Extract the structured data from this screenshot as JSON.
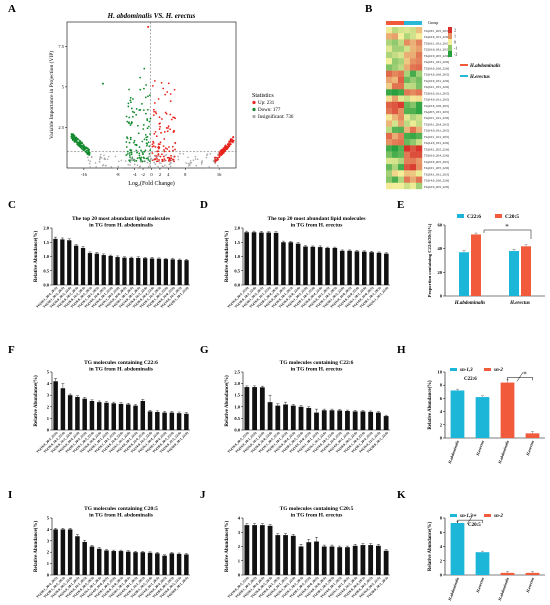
{
  "panel_letters": [
    "A",
    "B",
    "C",
    "D",
    "E",
    "F",
    "G",
    "H",
    "I",
    "J",
    "K"
  ],
  "colors": {
    "up": "#e8231d",
    "down": "#138a2e",
    "insig": "#aaaaaa",
    "sn13": "#1cb6d9",
    "sn2": "#f15a3a",
    "bar": "#111111",
    "heat_high": "#d7302a",
    "heat_low": "#27a13f",
    "heat_mid": "#f4ef9a",
    "group_a": "#f05a3a",
    "group_b": "#28b8d6"
  },
  "chart_data": [
    {
      "id": "A",
      "type": "scatter",
      "title": "H. abdominalis VS. H. erectus",
      "xlabel": "Log₂(Fold Change)",
      "ylabel": "Variable Importance in Projection (VIP)",
      "xticks": [
        "-16",
        "-8",
        "-4",
        "-2",
        "0",
        "2",
        "4",
        "8",
        "16"
      ],
      "yticks": [
        "2.5",
        "5",
        "7.5"
      ],
      "xlim": [
        -20,
        20
      ],
      "ylim": [
        0,
        9
      ],
      "legend": {
        "title": "Statistics",
        "placement": "right",
        "items": [
          "Up: 231",
          "Down: 177",
          "Insignificant: 736"
        ]
      }
    },
    {
      "id": "B",
      "type": "heatmap",
      "group_label": "Group",
      "groups": [
        "H.abdominalis",
        "H.erectus"
      ],
      "scale_ticks": [
        "2",
        "1",
        "0",
        "-1",
        "-2"
      ],
      "row_labels": [
        "TG(18:1_20:5_20:5)",
        "TG(16:0_16:1_22:6)",
        "TG(16:1_18:1_20:5)",
        "TG(16:0_18:1_20:5)",
        "TG(16:0_20:5_22:6)",
        "TG(18:1_18:1_22:6)",
        "TG(16:0_16:0_22:6)",
        "TG(14:0_16:0_20:5)",
        "TG(16:0_18:1_22:6)",
        "TG(16:1_18:1_22:6)",
        "TG(16:0_16:1_20:5)",
        "TG(14:0_16:1_20:5)",
        "TG(16:0_16:0_20:5)",
        "TG(20:5_18:1_20:5)",
        "TG(16:1_16:1_22:6)",
        "TG(18:1_20:4_20:5)",
        "TG(14:0_18:1_20:5)",
        "TG(16:1_16:1_20:5)",
        "TG(14:0_18:1_22:6)",
        "TG(18:1_20:5_22:6)",
        "TG(16:0_20:4_22:6)",
        "TG(16:0_20:5_20:5)",
        "TG(16:1_20:5_22:6)",
        "TG(18:1_18:1_20:5)",
        "TG(14:0_16:0_22:6)",
        "TG(16:0_20:5_22:6)"
      ]
    },
    {
      "id": "C",
      "type": "bar",
      "title": [
        "The top 20 most abundant lipid molecules",
        "in TG from H. abdominalis"
      ],
      "ylabel": "Relative Abundance(%)",
      "ylim": [
        0,
        2
      ],
      "yticks": [
        "0.0",
        "0.5",
        "1.0",
        "1.5",
        "2.0"
      ],
      "values": [
        1.62,
        1.6,
        1.57,
        1.38,
        1.3,
        1.12,
        1.1,
        1.05,
        1.02,
        0.98,
        0.96,
        0.95,
        0.95,
        0.94,
        0.93,
        0.92,
        0.91,
        0.9,
        0.88,
        0.87
      ],
      "errors": [
        0.06,
        0.05,
        0.05,
        0.04,
        0.05,
        0.04,
        0.04,
        0.04,
        0.03,
        0.04,
        0.03,
        0.03,
        0.04,
        0.03,
        0.04,
        0.03,
        0.03,
        0.04,
        0.03,
        0.03
      ],
      "categories": [
        "TG(18:1_20:4_20:5)",
        "TG(18:1_20:5_20:5)",
        "TG(16:0_20:5_22:6)",
        "TG(16:0_18:1_20:5)",
        "TG(16:0_16:1_20:5)",
        "TG(16:0_20:5_20:5)",
        "TG(16:1_18:1_20:5)",
        "TG(14:0_16:0_20:5)",
        "TG(16:0_18:1_22:6)",
        "TG(16:1_20:5_22:6)",
        "TG(16:0_16:0_20:5)",
        "TG(18:1_18:1_20:5)",
        "TG(14:0_18:1_20:5)",
        "TG(16:0_16:1_22:6)",
        "TG(16:0_20:4_22:6)",
        "TG(16:1_16:1_20:5)",
        "TG(18:1_20:5_22:6)",
        "TG(16:0_16:0_22:6)",
        "TG(14:0_16:1_20:5)",
        "TG(18:1_18:1_22:6)"
      ]
    },
    {
      "id": "D",
      "type": "bar",
      "title": [
        "The top 20 most abundant lipid molecules",
        "in TG from H. erectus"
      ],
      "ylabel": "Relative Abundance(%)",
      "ylim": [
        0,
        2
      ],
      "yticks": [
        "0.0",
        "0.5",
        "1.0",
        "1.5",
        "2.0"
      ],
      "values": [
        1.85,
        1.85,
        1.84,
        1.84,
        1.83,
        1.5,
        1.5,
        1.45,
        1.35,
        1.34,
        1.33,
        1.3,
        1.3,
        1.2,
        1.2,
        1.18,
        1.17,
        1.15,
        1.13,
        1.1
      ],
      "errors": [
        0.04,
        0.04,
        0.04,
        0.03,
        0.04,
        0.04,
        0.03,
        0.04,
        0.03,
        0.03,
        0.04,
        0.03,
        0.03,
        0.03,
        0.03,
        0.04,
        0.03,
        0.03,
        0.03,
        0.03
      ],
      "categories": [
        "TG(16:0_20:5_22:6)",
        "TG(16:0_18:1_22:6)",
        "TG(18:1_20:5_20:5)",
        "TG(16:0_16:1_22:6)",
        "TG(18:1_20:4_20:5)",
        "TG(16:0_20:5_20:5)",
        "TG(16:0_18:1_20:5)",
        "TG(16:0_16:0_22:6)",
        "TG(16:1_20:5_22:6)",
        "TG(18:1_18:1_22:6)",
        "TG(16:0_20:4_22:6)",
        "TG(16:0_16:1_20:5)",
        "TG(16:1_18:1_20:5)",
        "TG(18:1_20:5_22:6)",
        "TG(16:0_16:0_20:5)",
        "TG(14:0_16:0_22:6)",
        "TG(16:1_18:1_22:6)",
        "TG(14:0_16:0_20:5)",
        "TG(18:1_18:1_20:5)",
        "TG(16:1_16:1_22:6)"
      ]
    },
    {
      "id": "E",
      "type": "bar",
      "ylabel": "Proportion containing C22:6/20:5(%)",
      "ylim": [
        0,
        60
      ],
      "yticks": [
        "0",
        "20",
        "40",
        "60"
      ],
      "categories": [
        "H.abdominalis",
        "H.erectus"
      ],
      "series": [
        {
          "name": "C22:6",
          "values": [
            37,
            38
          ],
          "errors": [
            1.5,
            1.5
          ]
        },
        {
          "name": "C20:5",
          "values": [
            52,
            42
          ],
          "errors": [
            1.2,
            1.3
          ]
        }
      ],
      "annotation": "*"
    },
    {
      "id": "F",
      "type": "bar",
      "title": [
        "TG molecules containing C22:6",
        "in TG from H. abdominalis"
      ],
      "ylabel": "Relative Abundance(%)",
      "ylim": [
        0,
        5
      ],
      "yticks": [
        "0",
        "1",
        "2",
        "3",
        "4",
        "5"
      ],
      "values": [
        4.2,
        3.6,
        3.0,
        2.85,
        2.7,
        2.5,
        2.4,
        2.35,
        2.3,
        2.25,
        2.2,
        2.1,
        2.5,
        1.6,
        1.55,
        1.5,
        1.5,
        1.45,
        1.4
      ],
      "errors": [
        0.25,
        0.4,
        0.1,
        0.1,
        0.1,
        0.1,
        0.1,
        0.1,
        0.1,
        0.1,
        0.1,
        0.1,
        0.15,
        0.1,
        0.1,
        0.1,
        0.1,
        0.1,
        0.1
      ],
      "categories": [
        "TG(16:0_20:5_22:6)",
        "TG(16:0_18:1_22:6)",
        "TG(16:0_16:1_22:6)",
        "TG(16:0_20:4_22:6)",
        "TG(18:1_20:5_22:6)",
        "TG(16:1_20:5_22:6)",
        "TG(16:0_16:0_22:6)",
        "TG(18:1_18:1_22:6)",
        "TG(16:1_18:1_22:6)",
        "TG(14:0_16:0_22:6)",
        "TG(16:1_16:1_22:6)",
        "TG(14:0_18:1_22:6)",
        "TG(16:0_22:6_22:6)",
        "TG(14:0_16:1_22:6)",
        "TG(16:1_20:4_22:6)",
        "TG(18:1_20:4_22:6)",
        "TG(18:0_20:5_22:6)",
        "TG(16:0_22:5_22:6)",
        "TG(18:0_18:1_22:6)"
      ]
    },
    {
      "id": "G",
      "type": "bar",
      "title": [
        "TG molecules containing C22:6",
        "in TG from H. erectus"
      ],
      "ylabel": "Relative Abundance(%)",
      "ylim": [
        0,
        2.5
      ],
      "yticks": [
        "0.0",
        "0.5",
        "1.0",
        "1.5",
        "2.0",
        "2.5"
      ],
      "values": [
        1.85,
        1.85,
        1.84,
        1.2,
        1.05,
        1.1,
        1.05,
        1.0,
        0.95,
        0.75,
        0.85,
        0.85,
        0.84,
        0.82,
        0.8,
        0.8,
        0.78,
        0.75,
        0.6
      ],
      "errors": [
        0.05,
        0.05,
        0.05,
        0.3,
        0.08,
        0.1,
        0.05,
        0.05,
        0.05,
        0.15,
        0.05,
        0.05,
        0.04,
        0.04,
        0.05,
        0.04,
        0.04,
        0.04,
        0.04
      ],
      "categories": [
        "TG(16:0_20:5_22:6)",
        "TG(16:0_18:1_22:6)",
        "TG(16:0_16:1_22:6)",
        "TG(16:0_16:0_22:6)",
        "TG(16:1_20:5_22:6)",
        "TG(18:1_18:1_22:6)",
        "TG(16:0_20:4_22:6)",
        "TG(18:1_20:5_22:6)",
        "TG(14:0_16:0_22:6)",
        "TG(16:1_18:1_22:6)",
        "TG(16:1_16:1_22:6)",
        "TG(14:0_18:1_22:6)",
        "TG(16:0_22:6_22:6)",
        "TG(14:0_16:1_22:6)",
        "TG(18:0_20:5_22:6)",
        "TG(16:1_20:4_22:6)",
        "TG(18:1_20:4_22:6)",
        "TG(16:0_22:5_22:6)",
        "TG(18:0_18:1_22:6)"
      ]
    },
    {
      "id": "H",
      "type": "bar",
      "label": "C22:6",
      "ylabel": "Relative Abundance(%)",
      "ylim": [
        0,
        10
      ],
      "yticks": [
        "0",
        "2",
        "4",
        "6",
        "8",
        "10"
      ],
      "categories": [
        "H.abdominalis",
        "H.erectus",
        "H.abdominalis",
        "H.erectus"
      ],
      "series": [
        {
          "name": "sn-1,3",
          "values": [
            7.2,
            6.2,
            null,
            null
          ],
          "errors": [
            0.2,
            0.2,
            0,
            0
          ]
        },
        {
          "name": "sn-2",
          "values": [
            null,
            null,
            8.4,
            0.7
          ],
          "errors": [
            0,
            0,
            0.4,
            0.3
          ]
        }
      ],
      "annotation": "*"
    },
    {
      "id": "I",
      "type": "bar",
      "title": [
        "TG molecules containing C20:5",
        "in TG from H. abdominalis"
      ],
      "ylabel": "Relative Abundance(%)",
      "ylim": [
        0,
        5
      ],
      "yticks": [
        "0",
        "1",
        "2",
        "3",
        "4",
        "5"
      ],
      "values": [
        4.0,
        4.0,
        4.0,
        3.4,
        2.9,
        2.5,
        2.3,
        2.15,
        2.1,
        2.1,
        2.05,
        2.0,
        2.0,
        1.95,
        1.9,
        1.7,
        1.9,
        1.85,
        1.8
      ],
      "errors": [
        0.1,
        0.1,
        0.1,
        0.15,
        0.15,
        0.1,
        0.1,
        0.08,
        0.08,
        0.08,
        0.08,
        0.08,
        0.08,
        0.08,
        0.08,
        0.08,
        0.08,
        0.08,
        0.08
      ],
      "categories": [
        "TG(18:1_20:4_20:5)",
        "TG(18:1_20:5_20:5)",
        "TG(16:0_20:5_22:6)",
        "TG(16:0_18:1_20:5)",
        "TG(16:0_16:1_20:5)",
        "TG(16:0_20:5_20:5)",
        "TG(16:1_18:1_20:5)",
        "TG(14:0_16:0_20:5)",
        "TG(16:1_20:5_22:6)",
        "TG(16:0_16:0_20:5)",
        "TG(18:1_18:1_20:5)",
        "TG(14:0_18:1_20:5)",
        "TG(16:1_16:1_20:5)",
        "TG(18:1_20:5_22:6)",
        "TG(14:0_16:1_20:5)",
        "TG(16:0_20:4_20:5)",
        "TG(18:0_20:5_20:5)",
        "TG(16:0_20:5_22:5)",
        "TG(18:0_18:1_20:5)"
      ]
    },
    {
      "id": "J",
      "type": "bar",
      "title": [
        "TG molecules containing C20:5",
        "in TG from H. erectus"
      ],
      "ylabel": "Relative Abundance(%)",
      "ylim": [
        0,
        4
      ],
      "yticks": [
        "0",
        "1",
        "2",
        "3",
        "4"
      ],
      "values": [
        3.5,
        3.5,
        3.5,
        3.45,
        2.8,
        2.8,
        2.75,
        2.0,
        2.3,
        2.35,
        2.0,
        2.0,
        1.95,
        1.95,
        2.05,
        2.1,
        2.1,
        2.05,
        1.7
      ],
      "errors": [
        0.1,
        0.1,
        0.1,
        0.1,
        0.1,
        0.1,
        0.1,
        0.15,
        0.2,
        0.3,
        0.1,
        0.1,
        0.08,
        0.08,
        0.1,
        0.1,
        0.1,
        0.1,
        0.08
      ],
      "categories": [
        "TG(16:0_20:5_22:6)",
        "TG(18:1_20:5_20:5)",
        "TG(18:1_20:4_20:5)",
        "TG(16:0_20:5_20:5)",
        "TG(16:0_18:1_20:5)",
        "TG(16:0_16:1_20:5)",
        "TG(16:1_20:5_22:6)",
        "TG(16:1_18:1_20:5)",
        "TG(18:1_20:5_22:6)",
        "TG(16:0_16:0_20:5)",
        "TG(14:0_16:0_20:5)",
        "TG(18:1_18:1_20:5)",
        "TG(14:0_18:1_20:5)",
        "TG(16:1_16:1_20:5)",
        "TG(14:0_16:1_20:5)",
        "TG(16:0_20:4_20:5)",
        "TG(18:0_20:5_20:5)",
        "TG(16:0_20:5_22:5)",
        "TG(18:0_18:1_20:5)"
      ]
    },
    {
      "id": "K",
      "type": "bar",
      "label": "C20:5",
      "ylabel": "Relative Abundance(%)",
      "ylim": [
        0,
        8
      ],
      "yticks": [
        "0",
        "2",
        "4",
        "6",
        "8"
      ],
      "categories": [
        "H.abdominalis",
        "H.erectus",
        "H.abdominalis",
        "H.erectus"
      ],
      "series": [
        {
          "name": "sn-1,3",
          "values": [
            7.3,
            3.2,
            null,
            null
          ],
          "errors": [
            0.2,
            0.15,
            0,
            0
          ]
        },
        {
          "name": "sn-2",
          "values": [
            null,
            null,
            0.3,
            0.3
          ],
          "errors": [
            0,
            0,
            0.2,
            0.2
          ]
        }
      ],
      "annotation": "*"
    }
  ]
}
